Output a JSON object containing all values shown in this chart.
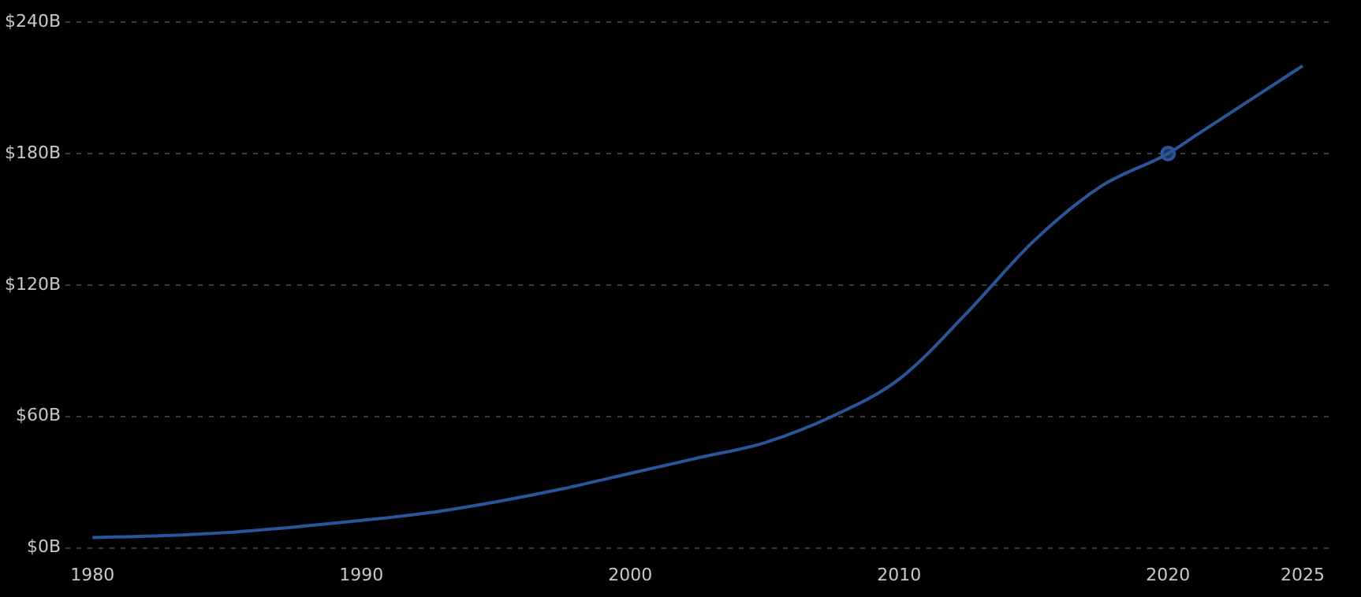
{
  "chart_data": {
    "type": "line",
    "x": [
      1980,
      1982.5,
      1985,
      1987.5,
      1990,
      1992.5,
      1995,
      1997.5,
      2000,
      2002.5,
      2005,
      2007.5,
      2010,
      2012.5,
      2015,
      2017.5,
      2020,
      2021,
      2022,
      2023,
      2024,
      2025
    ],
    "series": [
      {
        "color": "#2a5599",
        "values": [
          4.7,
          5.5,
          7,
          9.5,
          12.5,
          16,
          21,
          27,
          34,
          41,
          48,
          60,
          77,
          107,
          140,
          165,
          180,
          188,
          196,
          204,
          212,
          220
        ]
      },
      {
        "type": "scatter",
        "color": "#2a5599",
        "marker": "circle",
        "x": [
          2020
        ],
        "values": [
          180
        ]
      }
    ],
    "xlim": [
      1979,
      2026
    ],
    "xticks": [
      1980,
      1990,
      2000,
      2010,
      2020,
      2025
    ],
    "ylim": [
      0,
      240
    ],
    "yticks": [
      {
        "value": 0,
        "label": "$0B"
      },
      {
        "value": 60,
        "label": "$60B"
      },
      {
        "value": 120,
        "label": "$120B"
      },
      {
        "value": 180,
        "label": "$180B"
      },
      {
        "value": 240,
        "label": "$240B"
      }
    ],
    "grid": "y",
    "legend": false
  }
}
